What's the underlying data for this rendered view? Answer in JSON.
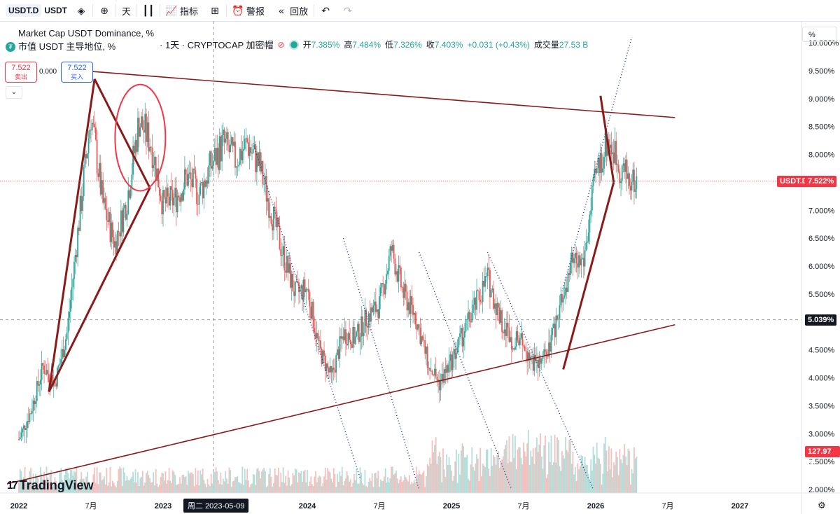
{
  "toolbar": {
    "symbol": "USDT.D",
    "symbol_suffix": "USDT",
    "interval": "天",
    "indicators_label": "指标",
    "alert_label": "警报",
    "replay_label": "回放"
  },
  "legend": {
    "title_en": "Market Cap USDT Dominance, %",
    "title_cn": "市值 USDT 主导地位, %",
    "title_rest": "· 1天 · CRYPTOCAP 加密帽",
    "open_label": "开",
    "open": "7.385%",
    "high_label": "高",
    "high": "7.484%",
    "low_label": "低",
    "low": "7.326%",
    "close_label": "收",
    "close": "7.403%",
    "change": "+0.031 (+0.43%)",
    "volume_label": "成交量",
    "volume": "27.53 B"
  },
  "trade": {
    "sell_price": "7.522",
    "sell_label": "卖出",
    "buy_price": "7.522",
    "buy_label": "买入",
    "spread": "0.000"
  },
  "price_axis": {
    "unit": "%",
    "current_symbol_tag": "USDT.D",
    "current_price_tag": "7.522%",
    "crosshair_tag": "5.039%",
    "volume_tag": "127.97 B"
  },
  "crosshair_date": "周二 2023-05-09",
  "logo_text": "TradingView",
  "colors": {
    "up": "#26a69a",
    "down": "#ef5350",
    "trendline": "#8b1a1a",
    "dotted": "#2a3a9a",
    "circle": "#f23645",
    "price_tag": "#f23645"
  },
  "chart_data": {
    "type": "candlestick",
    "y_unit": "%",
    "ylim": [
      1.9,
      10.2
    ],
    "y_ticks": [
      "10.000%",
      "9.500%",
      "9.000%",
      "8.500%",
      "8.000%",
      "7.500%",
      "7.000%",
      "6.500%",
      "6.000%",
      "5.500%",
      "5.000%",
      "4.500%",
      "4.000%",
      "3.500%",
      "3.000%",
      "2.500%",
      "2.000%"
    ],
    "x_ticks": [
      "2022",
      "7月",
      "2023",
      "2024",
      "7月",
      "2025",
      "7月",
      "2026",
      "7月",
      "2027"
    ],
    "x_range": [
      "2022-01",
      "2027-06"
    ],
    "current_value": 7.522,
    "crosshair_value": 5.039,
    "approx_close_path": [
      {
        "date": "2022-01",
        "value": 2.9
      },
      {
        "date": "2022-02",
        "value": 3.4
      },
      {
        "date": "2022-03",
        "value": 4.2
      },
      {
        "date": "2022-04",
        "value": 3.9
      },
      {
        "date": "2022-05",
        "value": 4.8
      },
      {
        "date": "2022-06",
        "value": 6.8
      },
      {
        "date": "2022-07",
        "value": 8.7
      },
      {
        "date": "2022-08",
        "value": 7.1
      },
      {
        "date": "2022-09",
        "value": 6.4
      },
      {
        "date": "2022-10",
        "value": 7.2
      },
      {
        "date": "2022-11",
        "value": 8.6
      },
      {
        "date": "2022-12",
        "value": 8.2
      },
      {
        "date": "2023-01",
        "value": 7.1
      },
      {
        "date": "2023-02",
        "value": 7.2
      },
      {
        "date": "2023-03",
        "value": 7.6
      },
      {
        "date": "2023-04",
        "value": 7.3
      },
      {
        "date": "2023-05",
        "value": 7.8
      },
      {
        "date": "2023-06",
        "value": 8.2
      },
      {
        "date": "2023-07",
        "value": 7.9
      },
      {
        "date": "2023-08",
        "value": 8.2
      },
      {
        "date": "2023-09",
        "value": 7.8
      },
      {
        "date": "2023-10",
        "value": 7.0
      },
      {
        "date": "2023-11",
        "value": 6.2
      },
      {
        "date": "2023-12",
        "value": 5.5
      },
      {
        "date": "2024-01",
        "value": 5.6
      },
      {
        "date": "2024-02",
        "value": 4.5
      },
      {
        "date": "2024-03",
        "value": 4.0
      },
      {
        "date": "2024-04",
        "value": 4.8
      },
      {
        "date": "2024-05",
        "value": 4.7
      },
      {
        "date": "2024-06",
        "value": 5.1
      },
      {
        "date": "2024-07",
        "value": 5.3
      },
      {
        "date": "2024-08",
        "value": 6.3
      },
      {
        "date": "2024-09",
        "value": 5.5
      },
      {
        "date": "2024-10",
        "value": 5.1
      },
      {
        "date": "2024-11",
        "value": 4.3
      },
      {
        "date": "2024-12",
        "value": 3.9
      },
      {
        "date": "2025-01",
        "value": 4.3
      },
      {
        "date": "2025-02",
        "value": 4.8
      },
      {
        "date": "2025-03",
        "value": 5.3
      },
      {
        "date": "2025-04",
        "value": 5.8
      },
      {
        "date": "2025-05",
        "value": 5.1
      },
      {
        "date": "2025-06",
        "value": 4.7
      },
      {
        "date": "2025-07",
        "value": 4.6
      },
      {
        "date": "2025-08",
        "value": 4.2
      },
      {
        "date": "2025-09",
        "value": 4.4
      },
      {
        "date": "2025-10",
        "value": 5.2
      },
      {
        "date": "2025-11",
        "value": 6.0
      },
      {
        "date": "2025-12",
        "value": 6.1
      },
      {
        "date": "2026-01",
        "value": 7.6
      },
      {
        "date": "2026-02",
        "value": 8.3
      },
      {
        "date": "2026-03",
        "value": 7.8
      },
      {
        "date": "2026-04",
        "value": 7.5
      }
    ]
  }
}
